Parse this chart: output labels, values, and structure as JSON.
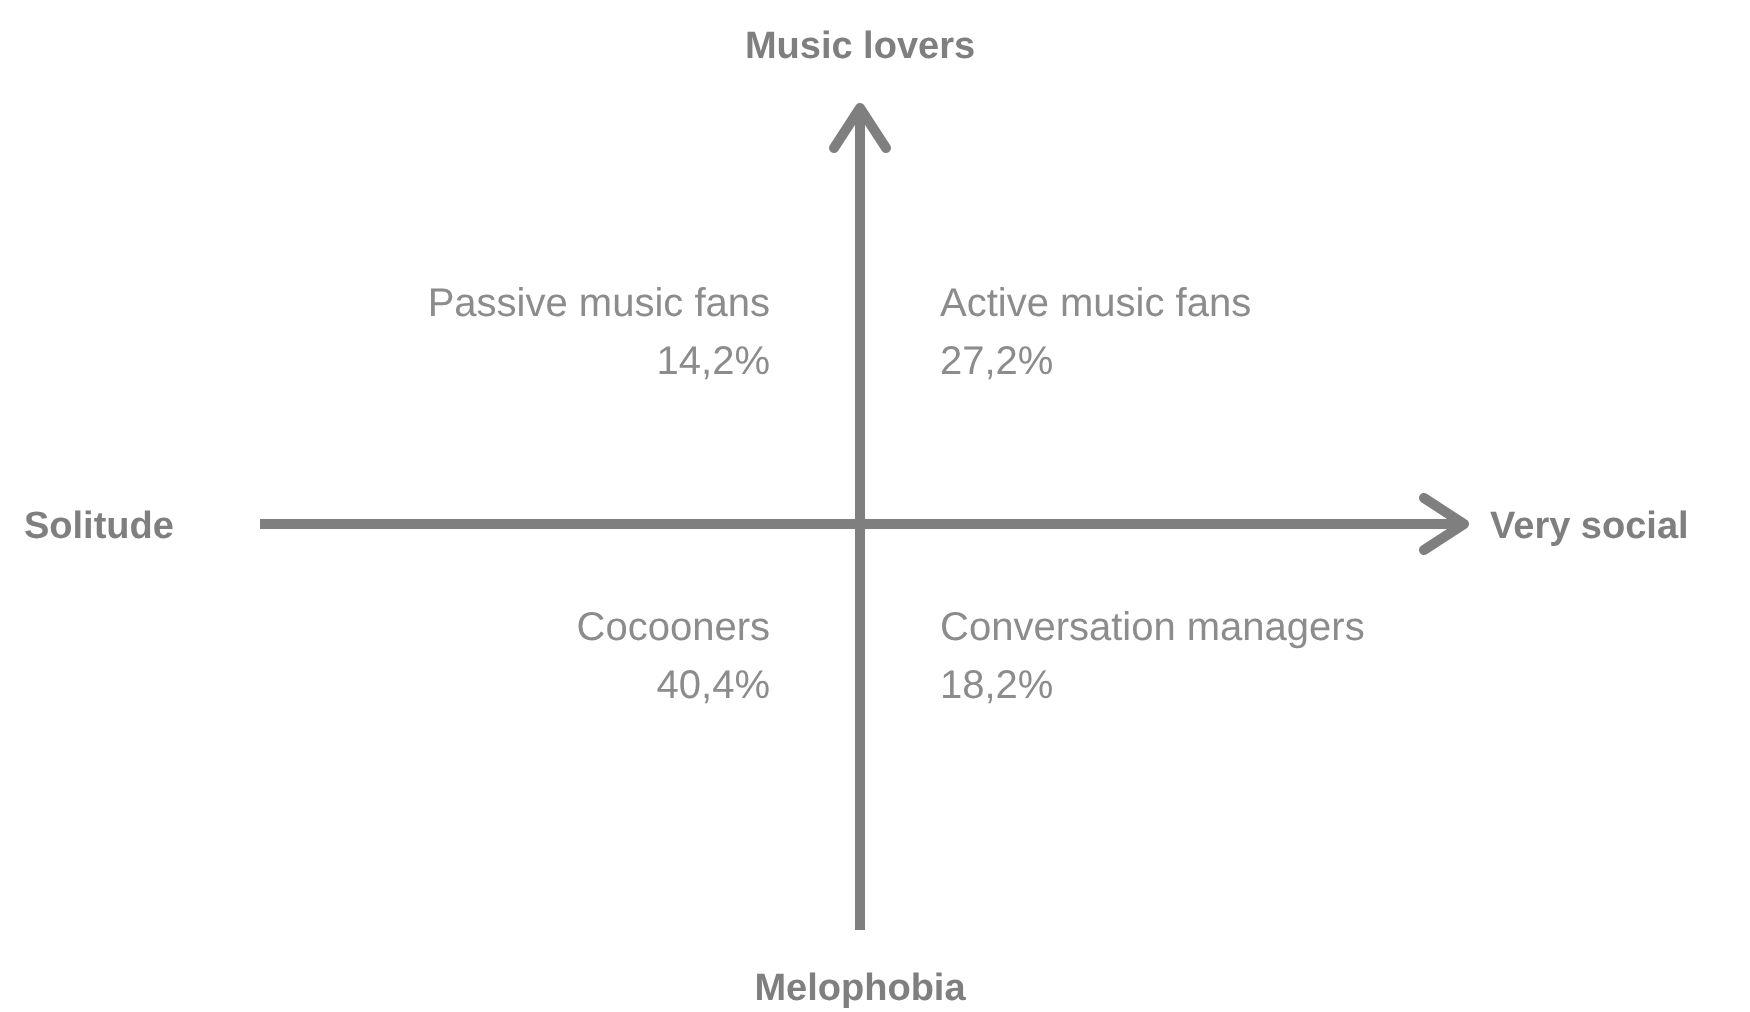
{
  "chart_data": {
    "type": "other",
    "categories": [
      "Passive music fans",
      "Active music fans",
      "Cocooners",
      "Conversation managers"
    ],
    "values": [
      14.2,
      27.2,
      40.4,
      18.2
    ],
    "value_labels": [
      "14,2%",
      "27,2%",
      "40,4%",
      "18,2%"
    ],
    "annotations": [
      "Music lovers",
      "Very social",
      "Melophobia",
      "Solitude"
    ]
  }
}
